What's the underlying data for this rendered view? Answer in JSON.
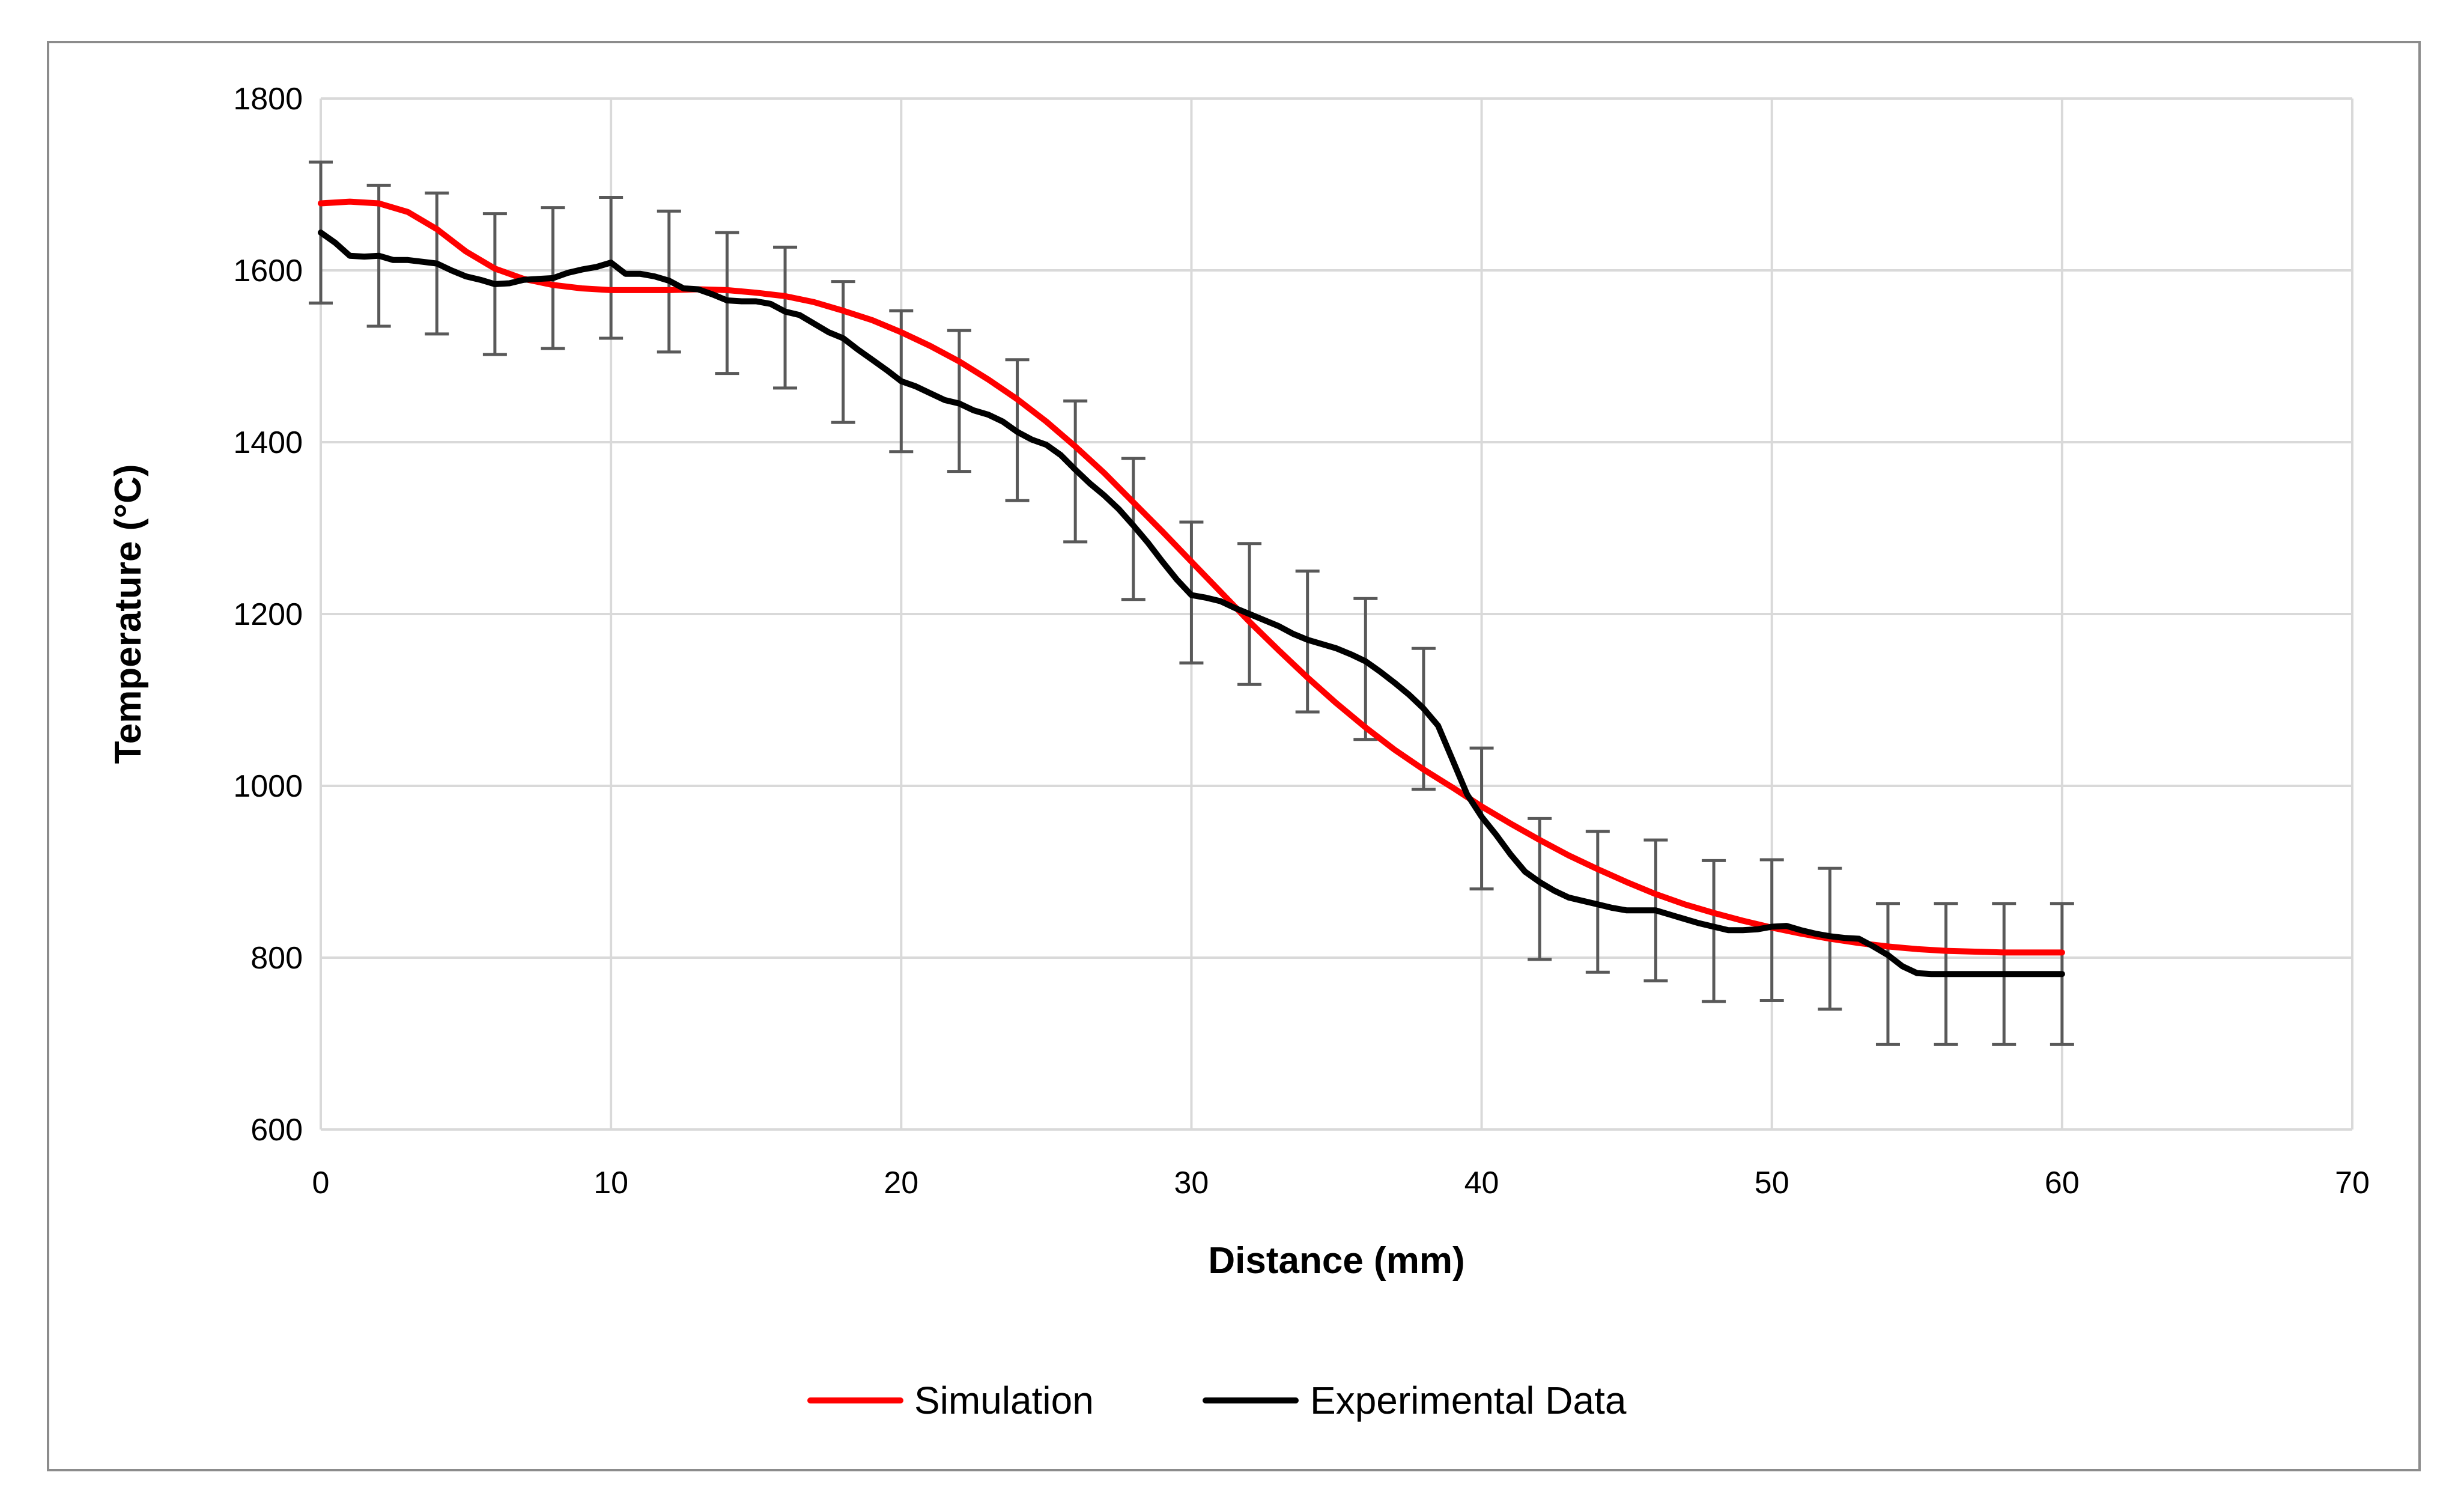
{
  "chart_data": {
    "type": "line",
    "title": "",
    "xlabel": "Distance (mm)",
    "ylabel": "Temperature (°C)",
    "xlim": [
      0,
      70
    ],
    "ylim": [
      600,
      1800
    ],
    "x_ticks": [
      0,
      10,
      20,
      30,
      40,
      50,
      60,
      70
    ],
    "y_ticks": [
      600,
      800,
      1000,
      1200,
      1400,
      1600,
      1800
    ],
    "grid": true,
    "legend_position": "bottom",
    "series": [
      {
        "name": "Simulation",
        "color": "#ff0000",
        "x": [
          0,
          1,
          2,
          3,
          4,
          5,
          6,
          7,
          8,
          9,
          10,
          11,
          12,
          13,
          14,
          15,
          16,
          17,
          18,
          19,
          20,
          21,
          22,
          23,
          24,
          25,
          26,
          27,
          28,
          29,
          30,
          31,
          32,
          33,
          34,
          35,
          36,
          37,
          38,
          39,
          40,
          41,
          42,
          43,
          44,
          45,
          46,
          47,
          48,
          49,
          50,
          51,
          52,
          53,
          54,
          55,
          56,
          57,
          58,
          59,
          60
        ],
        "y": [
          1678,
          1680,
          1678,
          1668,
          1648,
          1622,
          1602,
          1590,
          1583,
          1579,
          1577,
          1577,
          1577,
          1578,
          1577,
          1574,
          1570,
          1563,
          1553,
          1542,
          1528,
          1512,
          1494,
          1473,
          1450,
          1424,
          1395,
          1364,
          1330,
          1296,
          1261,
          1226,
          1191,
          1158,
          1126,
          1096,
          1068,
          1042,
          1019,
          998,
          976,
          956,
          937,
          919,
          903,
          888,
          874,
          862,
          852,
          843,
          835,
          828,
          822,
          817,
          813,
          810,
          808,
          807,
          806,
          806,
          806
        ]
      },
      {
        "name": "Experimental Data",
        "color": "#000000",
        "x": [
          0,
          0.5,
          1,
          1.5,
          2,
          2.5,
          3,
          3.5,
          4,
          4.5,
          5,
          5.5,
          6,
          6.5,
          7,
          7.5,
          8,
          8.5,
          9,
          9.5,
          10,
          10.5,
          11,
          11.5,
          12,
          12.5,
          13,
          13.5,
          14,
          14.5,
          15,
          15.5,
          16,
          16.5,
          17,
          17.5,
          18,
          18.5,
          19,
          19.5,
          20,
          20.5,
          21,
          21.5,
          22,
          22.5,
          23,
          23.5,
          24,
          24.5,
          25,
          25.5,
          26,
          26.5,
          27,
          27.5,
          28,
          28.5,
          29,
          29.5,
          30,
          30.5,
          31,
          31.5,
          32,
          32.5,
          33,
          33.5,
          34,
          34.5,
          35,
          35.5,
          36,
          36.5,
          37,
          37.5,
          38,
          38.5,
          39,
          39.5,
          40,
          40.5,
          41,
          41.5,
          42,
          42.5,
          43,
          43.5,
          44,
          44.5,
          45,
          45.5,
          46,
          46.5,
          47,
          47.5,
          48,
          48.5,
          49,
          49.5,
          50,
          50.5,
          51,
          51.5,
          52,
          52.5,
          53,
          53.5,
          54,
          54.5,
          55,
          55.5,
          56,
          56.5,
          57,
          57.5,
          58,
          58.5,
          59,
          59.5,
          60
        ],
        "y": [
          1644,
          1632,
          1617,
          1616,
          1617,
          1612,
          1612,
          1610,
          1608,
          1600,
          1593,
          1589,
          1584,
          1585,
          1589,
          1590,
          1591,
          1597,
          1601,
          1604,
          1609,
          1596,
          1596,
          1593,
          1588,
          1579,
          1578,
          1572,
          1565,
          1564,
          1564,
          1561,
          1552,
          1548,
          1538,
          1528,
          1521,
          1508,
          1496,
          1484,
          1471,
          1465,
          1457,
          1449,
          1445,
          1437,
          1432,
          1424,
          1412,
          1403,
          1397,
          1385,
          1368,
          1352,
          1338,
          1322,
          1303,
          1283,
          1261,
          1240,
          1222,
          1219,
          1215,
          1207,
          1200,
          1193,
          1186,
          1177,
          1170,
          1165,
          1160,
          1153,
          1145,
          1133,
          1120,
          1106,
          1090,
          1070,
          1030,
          990,
          964,
          943,
          920,
          900,
          888,
          878,
          870,
          866,
          862,
          858,
          855,
          855,
          855,
          850,
          845,
          840,
          836,
          832,
          832,
          833,
          836,
          837,
          832,
          828,
          825,
          823,
          822,
          813,
          803,
          790,
          782,
          781,
          781,
          781,
          781,
          781,
          781,
          781,
          781,
          781,
          781
        ]
      }
    ],
    "error_bars": {
      "series": "Experimental Data",
      "color": "#595959",
      "x": [
        0,
        2,
        4,
        6,
        8,
        10,
        12,
        14,
        16,
        18,
        20,
        22,
        24,
        26,
        28,
        30,
        32,
        34,
        36,
        38,
        40,
        42,
        44,
        46,
        48,
        50,
        52,
        54,
        56,
        58,
        60
      ],
      "y": [
        1644,
        1617,
        1608,
        1584,
        1591,
        1603,
        1587,
        1562,
        1545,
        1505,
        1471,
        1448,
        1414,
        1366,
        1299,
        1225,
        1200,
        1168,
        1136,
        1078,
        962,
        880,
        865,
        855,
        831,
        832,
        822,
        781,
        781,
        781,
        781
      ],
      "error": 82
    }
  }
}
